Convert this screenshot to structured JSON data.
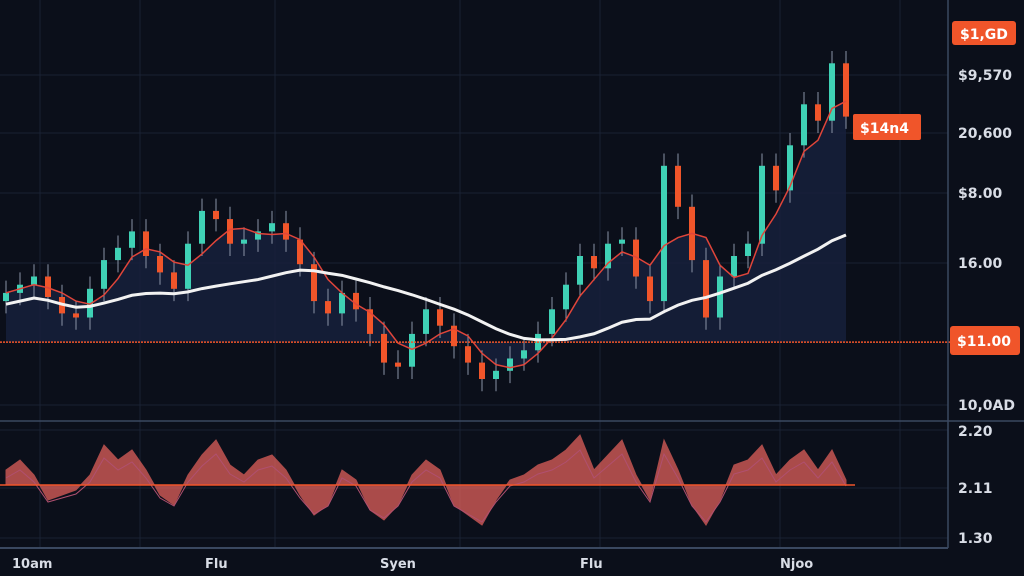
{
  "chart_data": {
    "type": "candlestick",
    "title": "",
    "xlabel": "",
    "ylabel": "",
    "ylim": [
      0,
      100
    ],
    "grid": true,
    "colors": {
      "background": "#0b0f1a",
      "up": "#3fd1b5",
      "down": "#f0552a",
      "ma_short": "#e0453a",
      "ma_long": "#f2f2f2",
      "level_line": "#f0552a",
      "badge": "#f0552a",
      "oscillator": "#e0605a",
      "area_fill": "#16213d"
    },
    "x_tick_labels": [
      "10am",
      "Flu",
      "Syen",
      "Flu",
      "Njoo"
    ],
    "y_tick_labels": [
      "$9,570",
      "20,600",
      "$8.00",
      "16.00",
      "10,0AD"
    ],
    "price_badges": {
      "top": "$1,GD",
      "last": "$14n4",
      "level": "$11.00"
    },
    "level_value": 19,
    "ohlc": {
      "open": [
        29,
        31,
        33,
        35,
        30,
        26,
        25,
        32,
        39,
        42,
        46,
        40,
        36,
        32,
        43,
        51,
        49,
        43,
        44,
        46,
        48,
        44,
        38,
        29,
        26,
        31,
        27,
        21,
        14,
        13,
        21,
        27,
        23,
        18,
        14,
        10,
        12,
        15,
        17,
        21,
        27,
        33,
        40,
        37,
        43,
        44,
        35,
        29,
        62,
        52,
        39,
        25,
        35,
        40,
        43,
        62,
        56,
        67,
        77,
        73,
        87
      ],
      "high": [
        34,
        36,
        38,
        38,
        33,
        29,
        35,
        42,
        45,
        49,
        49,
        43,
        39,
        46,
        54,
        54,
        52,
        47,
        49,
        51,
        51,
        47,
        41,
        32,
        34,
        34,
        30,
        24,
        17,
        24,
        30,
        30,
        26,
        21,
        17,
        15,
        18,
        20,
        24,
        30,
        36,
        43,
        43,
        46,
        47,
        47,
        38,
        65,
        65,
        55,
        42,
        38,
        43,
        46,
        65,
        65,
        70,
        80,
        80,
        90,
        90
      ],
      "low": [
        26,
        28,
        30,
        27,
        23,
        22,
        22,
        29,
        36,
        39,
        37,
        33,
        29,
        29,
        40,
        46,
        40,
        40,
        41,
        43,
        41,
        35,
        26,
        23,
        23,
        24,
        18,
        11,
        10,
        10,
        18,
        20,
        15,
        11,
        7,
        7,
        9,
        12,
        14,
        18,
        24,
        30,
        34,
        34,
        40,
        32,
        26,
        26,
        49,
        36,
        22,
        22,
        32,
        37,
        40,
        53,
        53,
        64,
        70,
        70,
        71
      ],
      "close": [
        31,
        33,
        35,
        30,
        26,
        25,
        32,
        39,
        42,
        46,
        40,
        36,
        32,
        43,
        51,
        49,
        43,
        44,
        46,
        48,
        44,
        38,
        29,
        26,
        31,
        27,
        21,
        14,
        13,
        21,
        27,
        23,
        18,
        14,
        10,
        12,
        15,
        17,
        21,
        27,
        33,
        40,
        37,
        43,
        44,
        35,
        29,
        62,
        52,
        39,
        25,
        35,
        40,
        43,
        62,
        56,
        67,
        77,
        73,
        87,
        74
      ]
    },
    "oscillator": {
      "y_tick_labels": [
        "2.20",
        "2.11",
        "1.30"
      ],
      "ylim": [
        -1,
        1
      ],
      "values": [
        0.3,
        0.5,
        0.2,
        -0.3,
        -0.2,
        -0.1,
        0.2,
        0.8,
        0.5,
        0.7,
        0.3,
        -0.2,
        -0.4,
        0.2,
        0.6,
        0.9,
        0.4,
        0.2,
        0.5,
        0.6,
        0.3,
        -0.2,
        -0.6,
        -0.4,
        0.3,
        0.1,
        -0.5,
        -0.7,
        -0.4,
        0.2,
        0.5,
        0.3,
        -0.4,
        -0.6,
        -0.8,
        -0.3,
        0.1,
        0.2,
        0.4,
        0.5,
        0.7,
        1.0,
        0.3,
        0.6,
        0.9,
        0.2,
        -0.3,
        0.9,
        0.3,
        -0.4,
        -0.8,
        -0.3,
        0.4,
        0.5,
        0.8,
        0.2,
        0.5,
        0.7,
        0.3,
        0.7,
        0.1
      ]
    }
  }
}
